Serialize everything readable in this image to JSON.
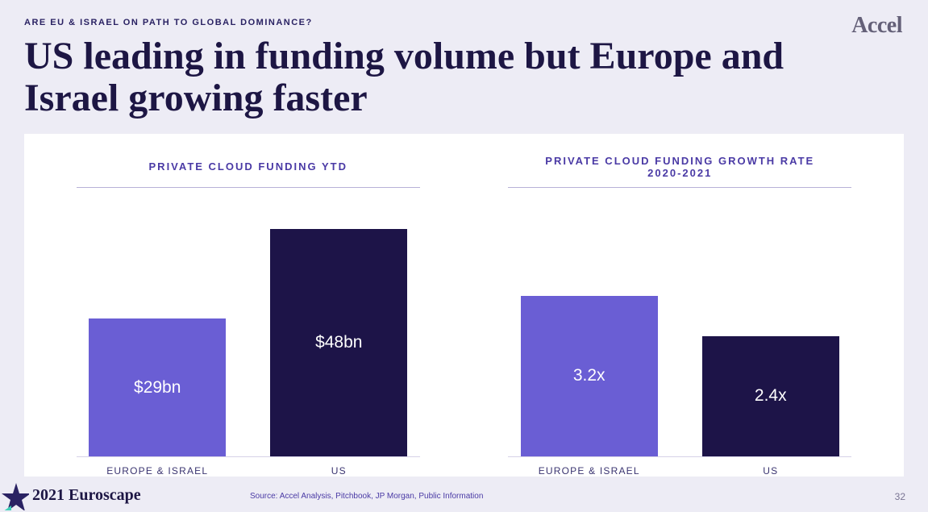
{
  "eyebrow": "ARE EU & ISRAEL ON PATH TO GLOBAL DOMINANCE?",
  "logo": "Accel",
  "title": "US leading in funding volume but Europe and Israel growing faster",
  "colors": {
    "page_bg": "#edecf5",
    "panel_bg": "#ffffff",
    "text_primary": "#1d1644",
    "accent": "#4a3aa5",
    "rule": "#b7b1d8"
  },
  "charts": [
    {
      "title": "PRIVATE CLOUD FUNDING YTD",
      "type": "bar",
      "y_max": 55,
      "value_fontsize": 21,
      "value_color": "#ffffff",
      "bars": [
        {
          "category": "EUROPE & ISRAEL",
          "value": 29,
          "label": "$29bn",
          "color": "#6a5ed4"
        },
        {
          "category": "US",
          "value": 48,
          "label": "$48bn",
          "color": "#1d1448"
        }
      ]
    },
    {
      "title": "PRIVATE CLOUD FUNDING GROWTH RATE\n2020-2021",
      "type": "bar",
      "y_max": 5.2,
      "value_fontsize": 21,
      "value_color": "#ffffff",
      "bars": [
        {
          "category": "EUROPE & ISRAEL",
          "value": 3.2,
          "label": "3.2x",
          "color": "#6a5ed4"
        },
        {
          "category": "US",
          "value": 2.4,
          "label": "2.4x",
          "color": "#1d1448"
        }
      ]
    }
  ],
  "footer": {
    "brand": "2021 Euroscape",
    "source": "Source: Accel Analysis, Pitchbook, JP Morgan, Public Information",
    "page_number": "32"
  }
}
